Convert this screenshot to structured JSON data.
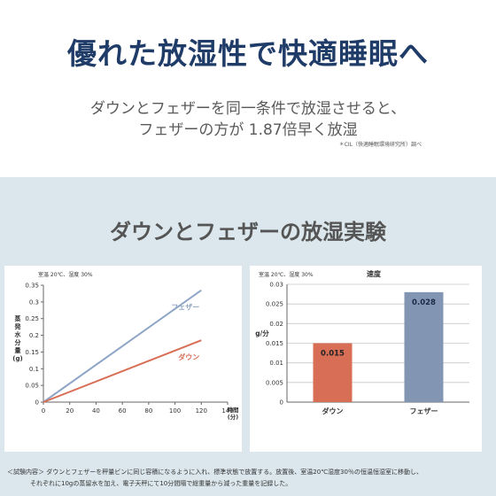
{
  "header": {
    "title": "優れた放湿性で快適睡眠へ",
    "subtitle_line1": "ダウンとフェザーを同一条件で放湿させると、",
    "subtitle_line2": "フェザーの方が 1.87倍早く放湿",
    "source_note": "＊CIL（快適睡眠環境研究所）調べ"
  },
  "section": {
    "title": "ダウンとフェザーの放湿実験"
  },
  "colors": {
    "down": "#d86e56",
    "feather": "#8fa6c7",
    "feather_bar": "#8296b3",
    "headline": "#1f3b68",
    "panel_bg": "#dbe7ec"
  },
  "chart_data": [
    {
      "type": "line",
      "condition_note": "室温 20℃、湿度 30%",
      "ylabel_lines": [
        "蒸",
        "発",
        "水",
        "分",
        "量",
        "(g)"
      ],
      "xlabel_lines": [
        "時間",
        "(分)"
      ],
      "xlim": [
        0,
        140
      ],
      "ylim": [
        0,
        0.35
      ],
      "x_ticks": [
        0,
        20,
        40,
        60,
        80,
        100,
        120,
        140
      ],
      "y_ticks": [
        "0",
        "0.05",
        "0.1",
        "0.15",
        "0.2",
        "0.25",
        "0.3",
        "0.35"
      ],
      "grid": false,
      "series": [
        {
          "name": "フェザー",
          "x": [
            0,
            120
          ],
          "y": [
            0,
            0.335
          ],
          "color": "#8fa6c7"
        },
        {
          "name": "ダウン",
          "x": [
            0,
            120
          ],
          "y": [
            0,
            0.185
          ],
          "color": "#d86e56"
        }
      ]
    },
    {
      "type": "bar",
      "title": "速度",
      "condition_note": "室温 20℃、湿度 30%",
      "ylabel": "g/分",
      "ylim": [
        0,
        0.03
      ],
      "y_ticks": [
        "0",
        "0.005",
        "0.01",
        "0.015",
        "0.02",
        "0.025",
        "0.03"
      ],
      "grid": true,
      "categories": [
        "ダウン",
        "フェザー"
      ],
      "values": [
        0.015,
        0.028
      ],
      "value_labels": [
        "0.015",
        "0.028"
      ],
      "colors": [
        "#d86e56",
        "#8296b3"
      ]
    }
  ],
  "footer": {
    "line1": "＜試験内容＞ ダウンとフェザーを秤量ビンに同じ容積になるように入れ、標準状態で放置する。放置後、室温20℃湿度30％の恒温恒湿室に移動し、",
    "line2": "それぞれに10gの蒸留水を加え、電子天秤にて10分間隔で総重量から減った重量を記録した。"
  }
}
